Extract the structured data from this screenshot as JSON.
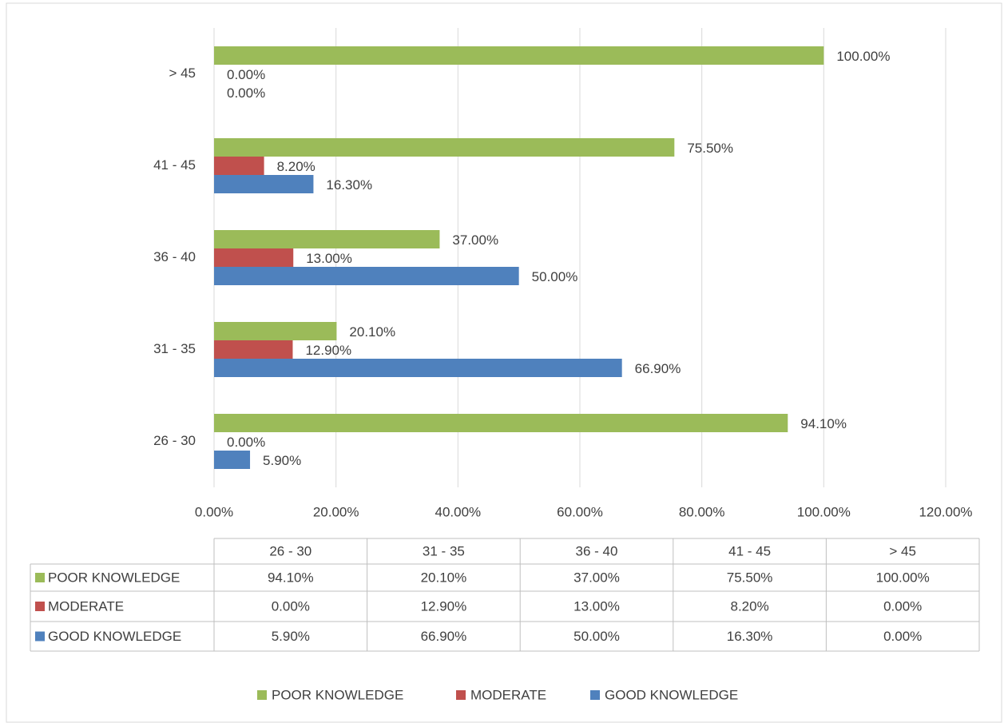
{
  "chart_data": {
    "type": "bar",
    "orientation": "horizontal",
    "categories": [
      "26 - 30",
      "31 - 35",
      "36 - 40",
      "41 - 45",
      "> 45"
    ],
    "series": [
      {
        "name": "POOR KNOWLEDGE",
        "color": "#9bbb59",
        "values": [
          94.1,
          20.1,
          37,
          75.5,
          100
        ],
        "value_labels": [
          "94.10%",
          "20.10%",
          "37.00%",
          "75.50%",
          "100.00%"
        ]
      },
      {
        "name": "MODERATE",
        "color": "#c0504d",
        "values": [
          0,
          12.9,
          13,
          8.2,
          0
        ],
        "value_labels": [
          "0.00%",
          "12.90%",
          "13.00%",
          "8.20%",
          "0.00%"
        ]
      },
      {
        "name": "GOOD KNOWLEDGE",
        "color": "#4f81bd",
        "values": [
          5.9,
          66.9,
          50,
          16.3,
          0
        ],
        "value_labels": [
          "5.90%",
          "66.90%",
          "50.00%",
          "16.30%",
          "0.00%"
        ]
      }
    ],
    "xlim": [
      0,
      120
    ],
    "xticks": [
      {
        "value": 0,
        "label": "0.00%"
      },
      {
        "value": 20,
        "label": "20.00%"
      },
      {
        "value": 40,
        "label": "40.00%"
      },
      {
        "value": 60,
        "label": "60.00%"
      },
      {
        "value": 80,
        "label": "80.00%"
      },
      {
        "value": 100,
        "label": "100.00%"
      },
      {
        "value": 120,
        "label": "120.00%"
      }
    ],
    "grid": true,
    "legend": "bottom",
    "data_table": true
  }
}
